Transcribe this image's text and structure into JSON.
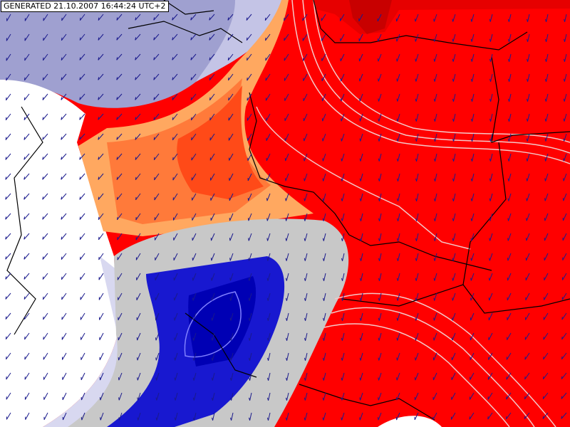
{
  "header": {
    "timestamp": "GENERATED 21.10.2007 16:44:24 UTC+2"
  }
}
